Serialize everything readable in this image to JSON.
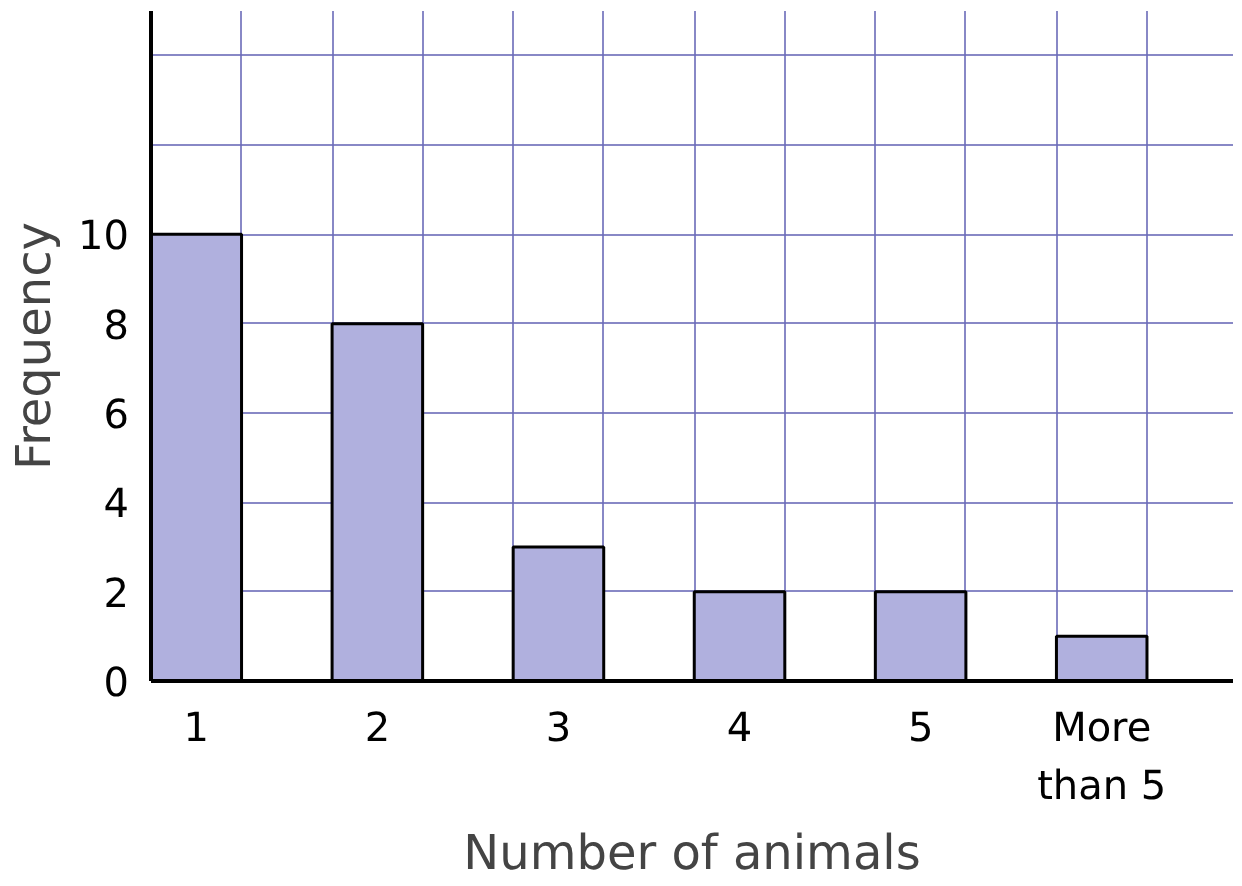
{
  "chart_data": {
    "type": "bar",
    "xlabel": "Number of animals",
    "ylabel": "Frequency",
    "categories": [
      "1",
      "2",
      "3",
      "4",
      "5",
      "More than 5"
    ],
    "values": [
      10,
      8,
      3,
      2,
      2,
      1
    ],
    "color": "#b0b0de",
    "ylim": [
      0,
      15
    ],
    "yticks": [
      0,
      2,
      4,
      6,
      8,
      10,
      {
        "value": 12,
        "label": null
      },
      {
        "value": 14,
        "label": null
      }
    ],
    "grid": true
  }
}
